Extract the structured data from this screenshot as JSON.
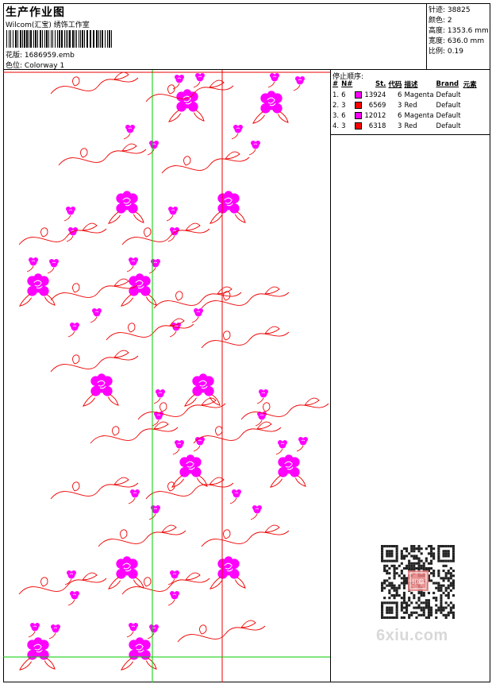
{
  "header": {
    "title": "生产作业图",
    "company": "Wilcom(汇宝) 绣饰工作室",
    "design_label": "花版:",
    "design_file": "1686959.emb",
    "colorway_label": "色位:",
    "colorway": "Colorway 1"
  },
  "stats": [
    {
      "label": "针迹:",
      "value": "38825"
    },
    {
      "label": "颜色:",
      "value": "2"
    },
    {
      "label": "高度:",
      "value": "1353.6 mm"
    },
    {
      "label": "宽度:",
      "value": "636.0 mm"
    },
    {
      "label": "比例:",
      "value": "0.19"
    }
  ],
  "stop_sequence": {
    "title": "停止顺序:",
    "columns": [
      "#",
      "N#",
      "St.",
      "代码",
      "描述",
      "Brand",
      "元素"
    ],
    "rows": [
      {
        "seq": "1.",
        "needle": "6",
        "color": "#ff00ff",
        "stitches": "13924",
        "code": "6",
        "desc": "Magenta",
        "brand": "Default"
      },
      {
        "seq": "2.",
        "needle": "3",
        "color": "#ff0000",
        "stitches": "6569",
        "code": "3",
        "desc": "Red",
        "brand": "Default"
      },
      {
        "seq": "3.",
        "needle": "6",
        "color": "#ff00ff",
        "stitches": "12012",
        "code": "6",
        "desc": "Magenta",
        "brand": "Default"
      },
      {
        "seq": "4.",
        "needle": "3",
        "color": "#ff0000",
        "stitches": "6318",
        "code": "3",
        "desc": "Red",
        "brand": "Default"
      }
    ]
  },
  "colors": {
    "magenta": "#ff00ff",
    "red": "#ff0000",
    "guide_green": "#00cc00",
    "guide_red": "#ee0000"
  },
  "watermark": {
    "brand": "6xiu.com",
    "stamp_text": "印章"
  }
}
